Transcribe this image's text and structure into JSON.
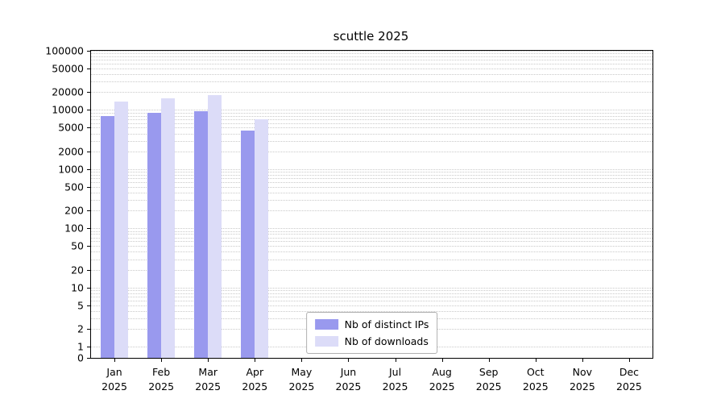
{
  "title": "scuttle 2025",
  "chart_data": {
    "type": "bar",
    "title": "scuttle 2025",
    "categories": [
      "Jan 2025",
      "Feb 2025",
      "Mar 2025",
      "Apr 2025",
      "May 2025",
      "Jun 2025",
      "Jul 2025",
      "Aug 2025",
      "Sep 2025",
      "Oct 2025",
      "Nov 2025",
      "Dec 2025"
    ],
    "series": [
      {
        "name": "Nb of distinct IPs",
        "color": "#9999ee",
        "values": [
          8000,
          9000,
          9500,
          4500,
          0,
          0,
          0,
          0,
          0,
          0,
          0,
          0
        ]
      },
      {
        "name": "Nb of downloads",
        "color": "#dcdcf8",
        "values": [
          14000,
          15500,
          18000,
          7000,
          0,
          0,
          0,
          0,
          0,
          0,
          0,
          0
        ]
      }
    ],
    "yscale": "symlog",
    "yticks": [
      100000,
      50000,
      20000,
      10000,
      5000,
      2000,
      1000,
      500,
      200,
      100,
      50,
      20,
      10,
      5,
      2,
      1,
      0
    ],
    "ylim": [
      0,
      100000
    ],
    "xlabel": "",
    "ylabel": "",
    "grid": true,
    "legend_position": "lower center"
  }
}
